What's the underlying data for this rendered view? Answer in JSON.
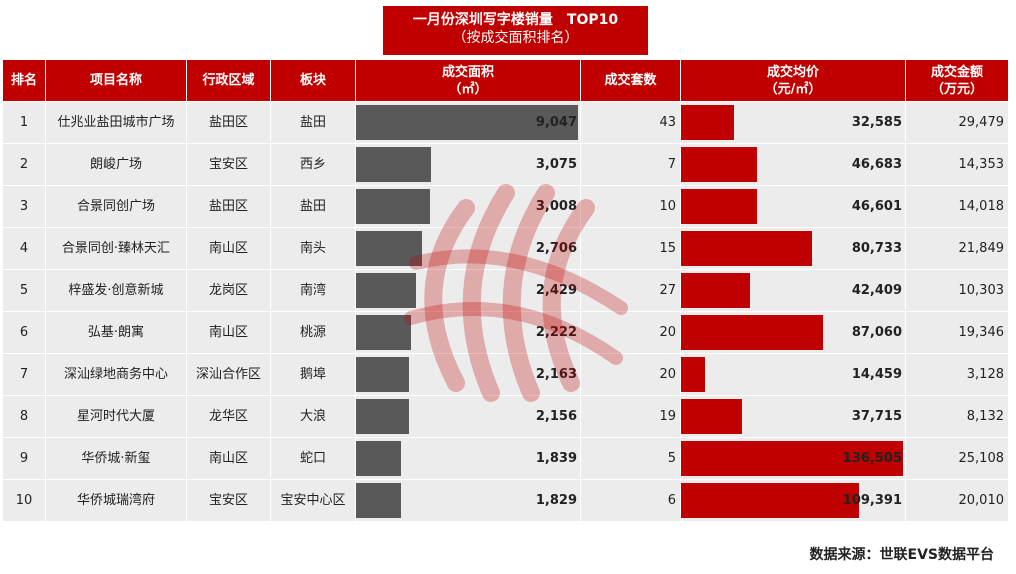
{
  "title": {
    "line1": "一月份深圳写字楼销量　TOP10",
    "line2": "（按成交面积排名）"
  },
  "headers": {
    "rank": "排名",
    "project": "项目名称",
    "district": "行政区域",
    "block": "板块",
    "area_line1": "成交面积",
    "area_line2": "（㎡）",
    "units": "成交套数",
    "price_line1": "成交均价",
    "price_line2": "（元/㎡）",
    "amount_line1": "成交金额",
    "amount_line2": "（万元）"
  },
  "chart_data": {
    "type": "table",
    "columns": [
      "排名",
      "项目名称",
      "行政区域",
      "板块",
      "成交面积（㎡）",
      "成交套数",
      "成交均价（元/㎡）",
      "成交金额（万元）"
    ],
    "rows": [
      {
        "rank": "1",
        "project": "仕兆业盐田城市广场",
        "district": "盐田区",
        "block": "盐田",
        "area": 9047,
        "area_label": "9,047",
        "units": "43",
        "price": 32585,
        "price_label": "32,585",
        "amount": "29,479"
      },
      {
        "rank": "2",
        "project": "朗峻广场",
        "district": "宝安区",
        "block": "西乡",
        "area": 3075,
        "area_label": "3,075",
        "units": "7",
        "price": 46683,
        "price_label": "46,683",
        "amount": "14,353"
      },
      {
        "rank": "3",
        "project": "合景同创广场",
        "district": "盐田区",
        "block": "盐田",
        "area": 3008,
        "area_label": "3,008",
        "units": "10",
        "price": 46601,
        "price_label": "46,601",
        "amount": "14,018"
      },
      {
        "rank": "4",
        "project": "合景同创·臻林天汇",
        "district": "南山区",
        "block": "南头",
        "area": 2706,
        "area_label": "2,706",
        "units": "15",
        "price": 80733,
        "price_label": "80,733",
        "amount": "21,849"
      },
      {
        "rank": "5",
        "project": "梓盛发·创意新城",
        "district": "龙岗区",
        "block": "南湾",
        "area": 2429,
        "area_label": "2,429",
        "units": "27",
        "price": 42409,
        "price_label": "42,409",
        "amount": "10,303"
      },
      {
        "rank": "6",
        "project": "弘基·朗寓",
        "district": "南山区",
        "block": "桃源",
        "area": 2222,
        "area_label": "2,222",
        "units": "20",
        "price": 87060,
        "price_label": "87,060",
        "amount": "19,346"
      },
      {
        "rank": "7",
        "project": "深汕绿地商务中心",
        "district": "深汕合作区",
        "block": "鹅埠",
        "area": 2163,
        "area_label": "2,163",
        "units": "20",
        "price": 14459,
        "price_label": "14,459",
        "amount": "3,128"
      },
      {
        "rank": "8",
        "project": "星河时代大厦",
        "district": "龙华区",
        "block": "大浪",
        "area": 2156,
        "area_label": "2,156",
        "units": "19",
        "price": 37715,
        "price_label": "37,715",
        "amount": "8,132"
      },
      {
        "rank": "9",
        "project": "华侨城·新玺",
        "district": "南山区",
        "block": "蛇口",
        "area": 1839,
        "area_label": "1,839",
        "units": "5",
        "price": 136505,
        "price_label": "136,505",
        "amount": "25,108"
      },
      {
        "rank": "10",
        "project": "华侨城瑞湾府",
        "district": "宝安区",
        "block": "宝安中心区",
        "area": 1829,
        "area_label": "1,829",
        "units": "6",
        "price": 109391,
        "price_label": "109,391",
        "amount": "20,010"
      }
    ],
    "area_max": 9047,
    "price_max": 136505
  },
  "colors": {
    "accent": "#c00000",
    "area_bar": "#595959",
    "price_bar": "#c00000",
    "cell_bg": "#ececec"
  },
  "source": "数据来源：世联EVS数据平台"
}
